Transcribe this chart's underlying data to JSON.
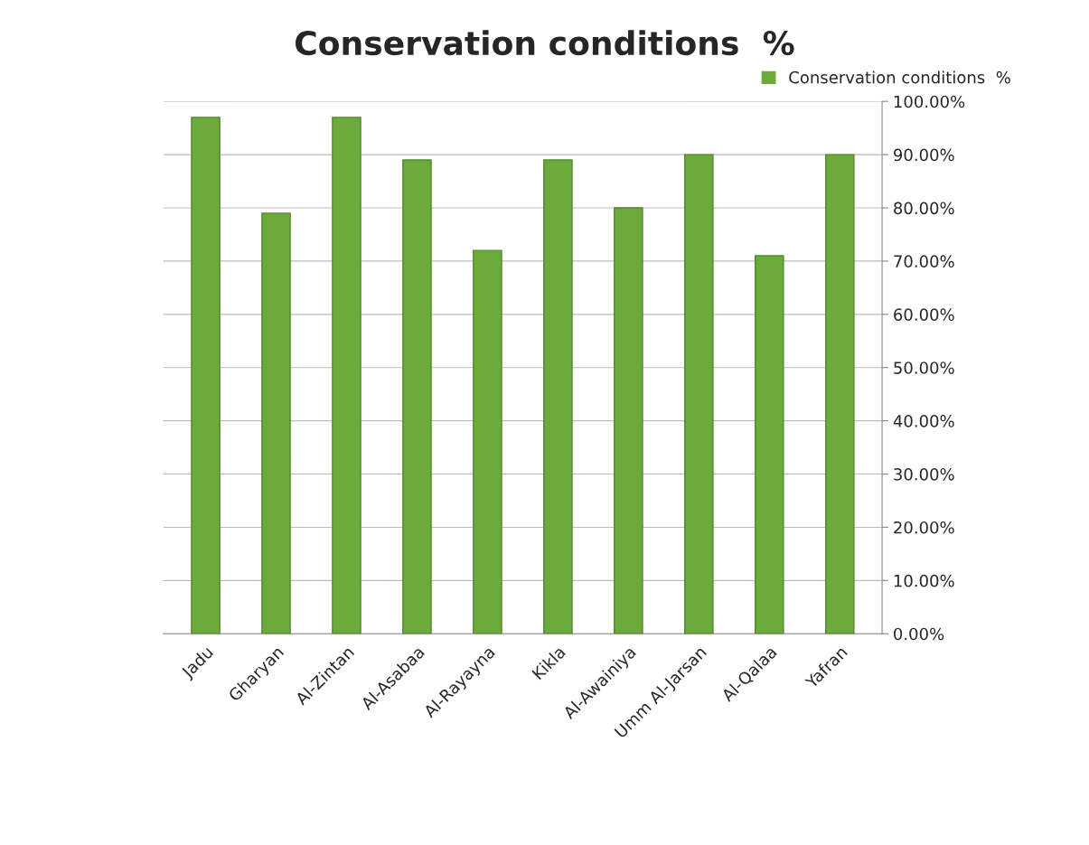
{
  "chart_data": {
    "type": "bar",
    "title": "Conservation conditions  %",
    "categories": [
      "Jadu",
      "Gharyan",
      "Al-Zintan",
      "Al-Asabaa",
      "Al-Rayayna",
      "Kikla",
      "Al-Awainiya",
      "Umm Al-Jarsan",
      "Al-Qalaa",
      "Yafran"
    ],
    "series": [
      {
        "name": "Conservation conditions  %",
        "color": "#6aab3c",
        "values": [
          97,
          79,
          97,
          89,
          72,
          89,
          80,
          90,
          71,
          90
        ]
      }
    ],
    "ylim": [
      0,
      100
    ],
    "yticks": [
      {
        "value": 0,
        "label": "0.00%"
      },
      {
        "value": 10,
        "label": "10.00%"
      },
      {
        "value": 20,
        "label": "20.00%"
      },
      {
        "value": 30,
        "label": "30.00%"
      },
      {
        "value": 40,
        "label": "40.00%"
      },
      {
        "value": 50,
        "label": "50.00%"
      },
      {
        "value": 60,
        "label": "60.00%"
      },
      {
        "value": 70,
        "label": "70.00%"
      },
      {
        "value": 80,
        "label": "80.00%"
      },
      {
        "value": 90,
        "label": "90.00%"
      },
      {
        "value": 100,
        "label": "100.00%"
      }
    ],
    "grid": "y",
    "legend": "top right"
  }
}
